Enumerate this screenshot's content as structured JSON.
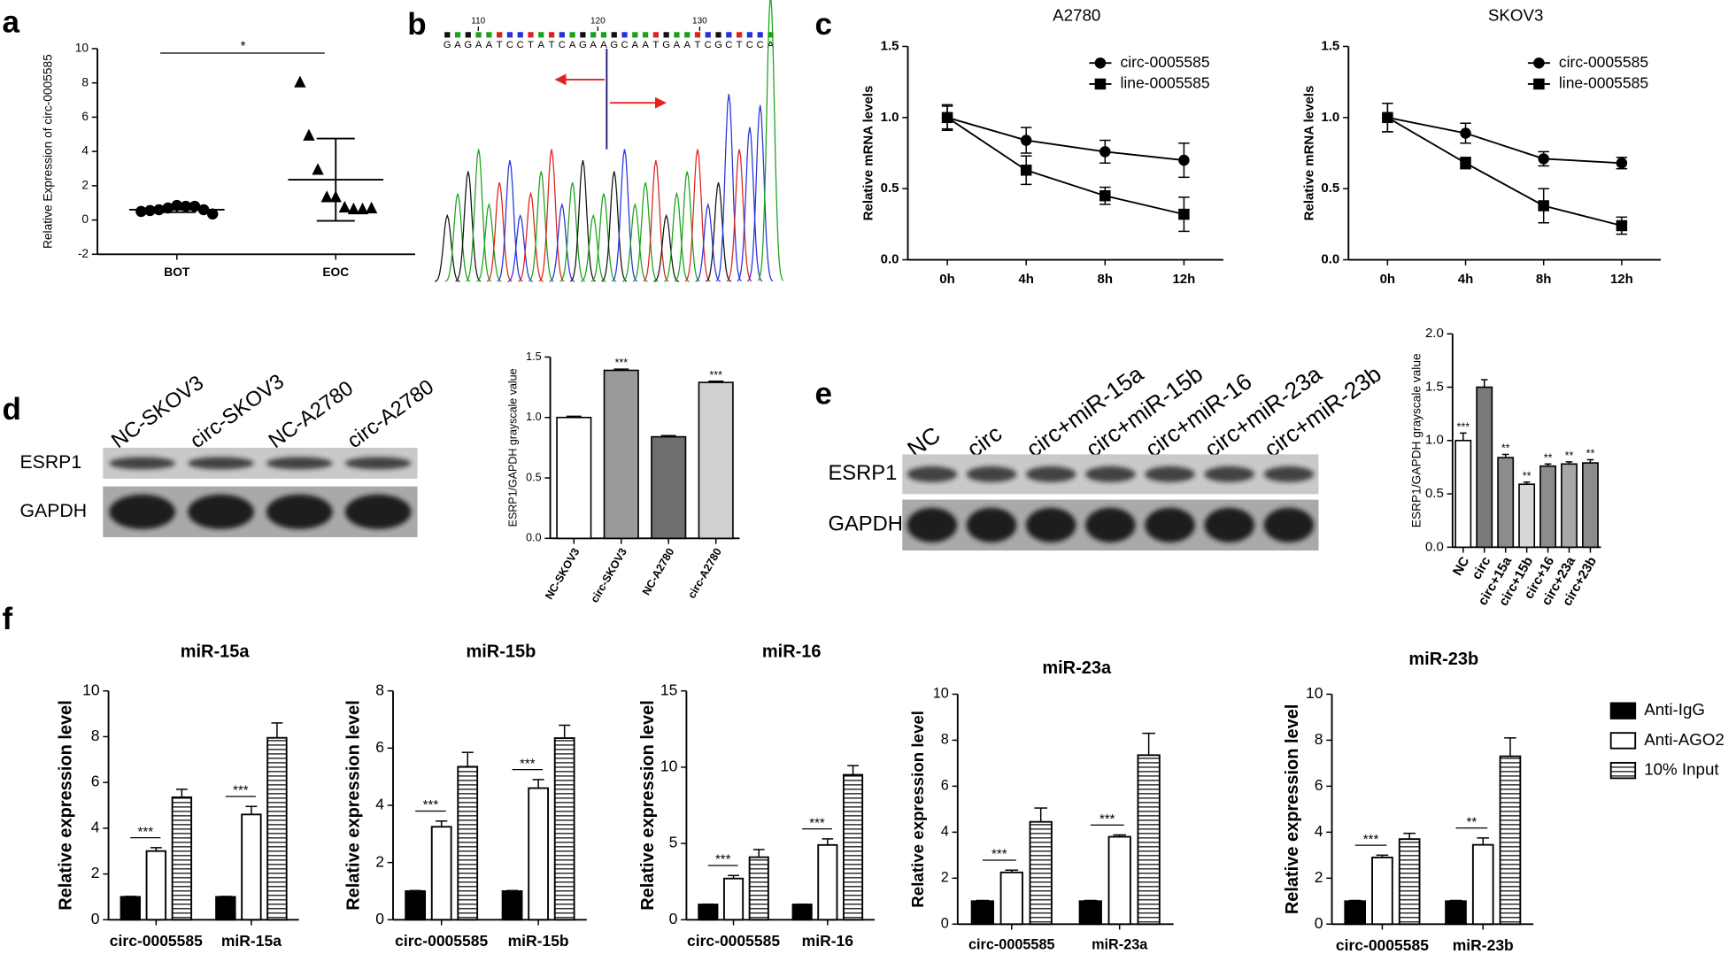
{
  "panel_labels": [
    "a",
    "b",
    "c",
    "d",
    "e",
    "f"
  ],
  "sequence": {
    "bases": "GAGAATCCTATCAGAAGCAATGAATCGCTCCA",
    "ticks": [
      110,
      120,
      130
    ]
  },
  "blots": [
    {
      "lanes": [
        "NC-SKOV3",
        "circ-SKOV3",
        "NC-A2780",
        "circ-A2780"
      ],
      "rows": [
        "ESRP1",
        "GAPDH"
      ]
    },
    {
      "lanes": [
        "NC",
        "circ",
        "circ+miR-15a",
        "circ+miR-15b",
        "circ+miR-16",
        "circ+miR-23a",
        "circ+miR-23b"
      ],
      "rows": [
        "ESRP1",
        "GAPDH"
      ]
    }
  ],
  "chart_data": [
    {
      "type": "dot",
      "y_label": "Relative Expression of circ-0005585",
      "categories": [
        "BOT",
        "EOC"
      ],
      "points": [
        [
          0.5,
          0.55,
          0.6,
          0.7,
          0.85,
          0.8,
          0.8,
          0.6,
          0.35
        ],
        [
          8.0,
          4.9,
          2.9,
          1.3,
          1.3,
          0.7,
          0.6,
          0.6,
          0.65
        ]
      ],
      "mean": [
        0.6,
        2.35
      ],
      "error": [
        0.15,
        2.4
      ],
      "markers": [
        "circle",
        "triangle"
      ],
      "color": "#000000",
      "annotation": "*",
      "ylim": [
        -2,
        10
      ],
      "yticks": [
        -2,
        0,
        2,
        4,
        6,
        8,
        10
      ]
    },
    {
      "type": "line",
      "title": "A2780",
      "y_label": "Relative mRNA levels",
      "categories": [
        "0h",
        "4h",
        "8h",
        "12h"
      ],
      "ylim": [
        0,
        1.5
      ],
      "yticks": [
        {
          "value": 0,
          "label": "0.0"
        },
        0.5,
        {
          "value": 1,
          "label": "1.0"
        },
        1.5
      ],
      "legend": "upper right",
      "series": [
        {
          "name": "circ-0005585",
          "color": "#000000",
          "marker": "circle",
          "values": [
            1.0,
            0.84,
            0.76,
            0.7
          ],
          "errors": [
            0.08,
            0.09,
            0.08,
            0.12
          ]
        },
        {
          "name": "line-0005585",
          "color": "#000000",
          "marker": "square",
          "values": [
            1.0,
            0.63,
            0.45,
            0.32
          ],
          "errors": [
            0.09,
            0.1,
            0.06,
            0.12
          ]
        }
      ]
    },
    {
      "type": "line",
      "title": "SKOV3",
      "y_label": "Relative mRNA levels",
      "categories": [
        "0h",
        "4h",
        "8h",
        "12h"
      ],
      "ylim": [
        0,
        1.5
      ],
      "yticks": [
        {
          "value": 0,
          "label": "0.0"
        },
        0.5,
        {
          "value": 1,
          "label": "1.0"
        },
        1.5
      ],
      "legend": "upper right",
      "series": [
        {
          "name": "circ-0005585",
          "color": "#000000",
          "marker": "circle",
          "values": [
            1.0,
            0.89,
            0.71,
            0.68
          ],
          "errors": [
            0.1,
            0.07,
            0.05,
            0.04
          ]
        },
        {
          "name": "line-0005585",
          "color": "#000000",
          "marker": "square",
          "values": [
            1.0,
            0.68,
            0.38,
            0.24
          ],
          "errors": [
            0.1,
            0.04,
            0.12,
            0.06
          ]
        }
      ]
    },
    {
      "type": "bar",
      "y_label": "ESRP1/GAPDH grayscale value",
      "categories": [
        "NC-SKOV3",
        "circ-SKOV3",
        "NC-A2780",
        "circ-A2780"
      ],
      "values": [
        1.0,
        1.39,
        0.84,
        1.29
      ],
      "errors": [
        0.01,
        0.01,
        0.01,
        0.01
      ],
      "colors": [
        "#ffffff",
        "#9a9a9a",
        "#6e6e6e",
        "#d0d0d0"
      ],
      "significance": [
        null,
        "***",
        null,
        "***"
      ],
      "ylim": [
        0,
        1.5
      ],
      "yticks": [
        {
          "value": 0,
          "label": "0.0"
        },
        0.5,
        {
          "value": 1,
          "label": "1.0"
        },
        1.5
      ],
      "x_label_rotation": -60
    },
    {
      "type": "bar",
      "y_label": "ESRP1/GAPDH grayscale value",
      "categories": [
        "NC",
        "circ",
        "circ+15a",
        "circ+15b",
        "circ+16",
        "circ+23a",
        "circ+23b"
      ],
      "values": [
        1.0,
        1.5,
        0.84,
        0.59,
        0.76,
        0.78,
        0.79
      ],
      "errors": [
        0.07,
        0.07,
        0.03,
        0.02,
        0.02,
        0.02,
        0.03
      ],
      "colors": [
        "#ffffff",
        "#7a7a7a",
        "#8c8c8c",
        "#d8d8d8",
        "#8c8c8c",
        "#a8a8a8",
        "#8c8c8c"
      ],
      "significance": [
        "***",
        null,
        "**",
        "**",
        "**",
        "**",
        "**"
      ],
      "ylim": [
        0,
        2
      ],
      "yticks": [
        {
          "value": 0,
          "label": "0.0"
        },
        0.5,
        {
          "value": 1,
          "label": "1.0"
        },
        1.5,
        {
          "value": 2,
          "label": "2.0"
        }
      ],
      "x_label_rotation": -60
    },
    {
      "type": "bar",
      "title": "miR-15a",
      "y_label": "Relative expression level",
      "categories": [
        "circ-0005585",
        "miR-15a"
      ],
      "ylim": [
        0,
        10
      ],
      "yticks": [
        0,
        2,
        4,
        6,
        8,
        10
      ],
      "significance": [
        "***",
        "***"
      ],
      "series": [
        {
          "name": "Anti-IgG",
          "color": "#000000",
          "pattern": "solid",
          "values": [
            1,
            1
          ],
          "errors": [
            0.02,
            0.02
          ]
        },
        {
          "name": "Anti-AGO2",
          "color": "#000000",
          "pattern": "none",
          "values": [
            3.0,
            4.6
          ],
          "errors": [
            0.15,
            0.35
          ]
        },
        {
          "name": "10% Input",
          "color": "#000000",
          "pattern": "horizontal-stripes",
          "values": [
            5.35,
            7.95
          ],
          "errors": [
            0.35,
            0.65
          ]
        }
      ]
    },
    {
      "type": "bar",
      "title": "miR-15b",
      "y_label": "Relative expression level",
      "categories": [
        "circ-0005585",
        "miR-15b"
      ],
      "ylim": [
        0,
        8
      ],
      "yticks": [
        0,
        2,
        4,
        6,
        8
      ],
      "significance": [
        "***",
        "***"
      ],
      "series": [
        {
          "name": "Anti-IgG",
          "color": "#000000",
          "pattern": "solid",
          "values": [
            1,
            1
          ],
          "errors": [
            0.02,
            0.02
          ]
        },
        {
          "name": "Anti-AGO2",
          "color": "#000000",
          "pattern": "none",
          "values": [
            3.25,
            4.6
          ],
          "errors": [
            0.2,
            0.3
          ]
        },
        {
          "name": "10% Input",
          "color": "#000000",
          "pattern": "horizontal-stripes",
          "values": [
            5.35,
            6.35
          ],
          "errors": [
            0.5,
            0.45
          ]
        }
      ]
    },
    {
      "type": "bar",
      "title": "miR-16",
      "y_label": "Relative expression level",
      "categories": [
        "circ-0005585",
        "miR-16"
      ],
      "ylim": [
        0,
        15
      ],
      "yticks": [
        0,
        5,
        10,
        15
      ],
      "significance": [
        "***",
        "***"
      ],
      "series": [
        {
          "name": "Anti-IgG",
          "color": "#000000",
          "pattern": "solid",
          "values": [
            1,
            1
          ],
          "errors": [
            0.02,
            0.02
          ]
        },
        {
          "name": "Anti-AGO2",
          "color": "#000000",
          "pattern": "none",
          "values": [
            2.7,
            4.9
          ],
          "errors": [
            0.2,
            0.4
          ]
        },
        {
          "name": "10% Input",
          "color": "#000000",
          "pattern": "horizontal-stripes",
          "values": [
            4.1,
            9.5
          ],
          "errors": [
            0.5,
            0.6
          ]
        }
      ]
    },
    {
      "type": "bar",
      "title": "miR-23a",
      "y_label": "Relative expression level",
      "categories": [
        "circ-0005585",
        "miR-23a"
      ],
      "ylim": [
        0,
        10
      ],
      "yticks": [
        0,
        2,
        4,
        6,
        8,
        10
      ],
      "significance": [
        "***",
        "***"
      ],
      "series": [
        {
          "name": "Anti-IgG",
          "color": "#000000",
          "pattern": "solid",
          "values": [
            1,
            1
          ],
          "errors": [
            0.03,
            0.03
          ]
        },
        {
          "name": "Anti-AGO2",
          "color": "#000000",
          "pattern": "none",
          "values": [
            2.25,
            3.8
          ],
          "errors": [
            0.1,
            0.08
          ]
        },
        {
          "name": "10% Input",
          "color": "#000000",
          "pattern": "horizontal-stripes",
          "values": [
            4.45,
            7.35
          ],
          "errors": [
            0.6,
            0.95
          ]
        }
      ]
    },
    {
      "type": "bar",
      "title": "miR-23b",
      "y_label": "Relative expression level",
      "categories": [
        "circ-0005585",
        "miR-23b"
      ],
      "ylim": [
        0,
        10
      ],
      "yticks": [
        0,
        2,
        4,
        6,
        8,
        10
      ],
      "significance": [
        "***",
        "**"
      ],
      "legend": "right",
      "series": [
        {
          "name": "Anti-IgG",
          "color": "#000000",
          "pattern": "solid",
          "values": [
            1,
            1
          ],
          "errors": [
            0.03,
            0.03
          ]
        },
        {
          "name": "Anti-AGO2",
          "color": "#000000",
          "pattern": "none",
          "values": [
            2.9,
            3.45
          ],
          "errors": [
            0.1,
            0.3
          ]
        },
        {
          "name": "10% Input",
          "color": "#000000",
          "pattern": "horizontal-stripes",
          "values": [
            3.7,
            7.3
          ],
          "errors": [
            0.25,
            0.8
          ]
        }
      ]
    }
  ]
}
